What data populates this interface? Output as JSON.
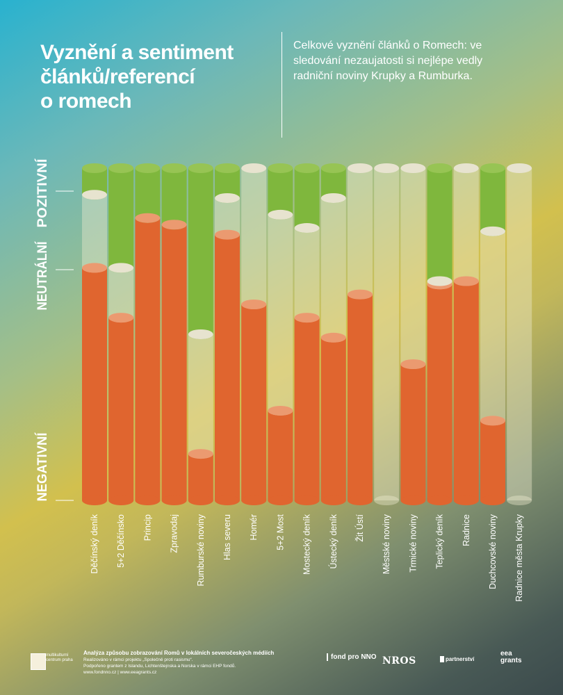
{
  "header": {
    "title_line1": "Vyznění a sentiment",
    "title_line2": "článků/referencí",
    "title_line3": "o romech",
    "subtitle": "Celkové vyznění článků o Romech: ve sledování nezaujatosti si nejlépe vedly radniční noviny Krupky a Rumburka."
  },
  "colors": {
    "negative": "#e0652f",
    "negative_top": "#eb9a70",
    "positive": "#7fb73d",
    "positive_top": "#97c454",
    "neutral": "rgba(236,233,205,0.42)",
    "neutral_top": "#e7e3cf"
  },
  "chart_data": {
    "type": "bar",
    "stacked": true,
    "title": "Vyznění a sentiment článků/referencí o romech",
    "ylim": [
      0,
      100
    ],
    "y_labels": [
      "NEGATIVNÍ",
      "NEUTRÁLNÍ",
      "POZITIVNÍ"
    ],
    "categories": [
      "Děčínský deník",
      "5+2 Děčínsko",
      "Princip",
      "Zpravodaj",
      "Rumburské noviny",
      "Hlas severu",
      "Homér",
      "5+2 Most",
      "Mostecký deník",
      "Ústecký deník",
      "Žit Ústí",
      "Městské noviny",
      "Trmické noviny",
      "Teplický deník",
      "Radnice",
      "Duchcovské noviny",
      "Radnice města Krupky"
    ],
    "series": [
      {
        "name": "negativní",
        "values": [
          70,
          55,
          85,
          83,
          14,
          80,
          59,
          27,
          55,
          49,
          62,
          0,
          41,
          65,
          66,
          24,
          0
        ]
      },
      {
        "name": "neutrální",
        "values": [
          22,
          15,
          0,
          0,
          36,
          11,
          41,
          59,
          27,
          42,
          38,
          100,
          59,
          1,
          34,
          57,
          100
        ]
      },
      {
        "name": "pozitivní",
        "values": [
          8,
          30,
          15,
          17,
          50,
          9,
          0,
          14,
          18,
          9,
          0,
          0,
          0,
          34,
          0,
          19,
          0
        ]
      }
    ]
  },
  "footer": {
    "logo_text": "multikulturní centrum praha",
    "line1": "Analýza způsobu zobrazování Romů v lokálních severočeských médiích",
    "line2": "Realizováno v rámci projektu „Společně proti rasismu“.",
    "line3": "Podpořeno grantem z Islandu, Lichtenštejnska a Norska v rámci EHP fondů.",
    "line4": "www.fondnno.cz | www.eeagrants.cz",
    "partner1": "fond pro NNO",
    "partner2": "NROS",
    "partner3": "partnerství",
    "partner4": "eea grants"
  }
}
